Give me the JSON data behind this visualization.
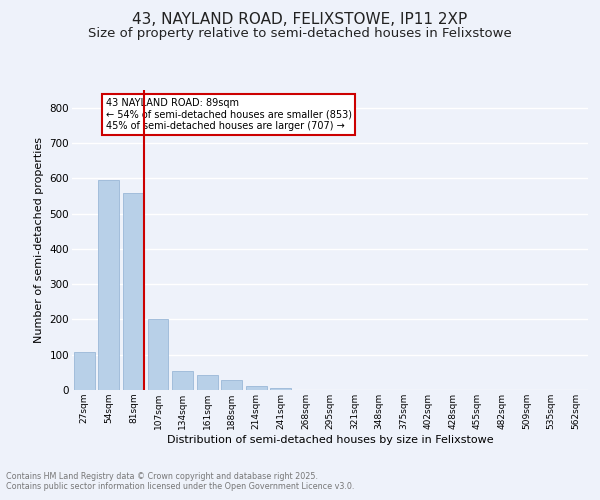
{
  "title1": "43, NAYLAND ROAD, FELIXSTOWE, IP11 2XP",
  "title2": "Size of property relative to semi-detached houses in Felixstowe",
  "xlabel": "Distribution of semi-detached houses by size in Felixstowe",
  "ylabel": "Number of semi-detached properties",
  "footnote1": "Contains HM Land Registry data © Crown copyright and database right 2025.",
  "footnote2": "Contains public sector information licensed under the Open Government Licence v3.0.",
  "annotation_title": "43 NAYLAND ROAD: 89sqm",
  "annotation_line2": "← 54% of semi-detached houses are smaller (853)",
  "annotation_line3": "45% of semi-detached houses are larger (707) →",
  "bar_labels": [
    "27sqm",
    "54sqm",
    "81sqm",
    "107sqm",
    "134sqm",
    "161sqm",
    "188sqm",
    "214sqm",
    "241sqm",
    "268sqm",
    "295sqm",
    "321sqm",
    "348sqm",
    "375sqm",
    "402sqm",
    "428sqm",
    "455sqm",
    "482sqm",
    "509sqm",
    "535sqm",
    "562sqm"
  ],
  "bar_values": [
    107,
    595,
    558,
    201,
    55,
    43,
    27,
    10,
    5,
    0,
    0,
    0,
    0,
    0,
    0,
    0,
    0,
    0,
    0,
    0,
    0
  ],
  "bar_color": "#b8d0e8",
  "bar_edge_color": "#9ab8d8",
  "vline_color": "#cc0000",
  "ylim": [
    0,
    850
  ],
  "yticks": [
    0,
    100,
    200,
    300,
    400,
    500,
    600,
    700,
    800
  ],
  "bg_color": "#eef2fa",
  "grid_color": "#ffffff",
  "title_fontsize": 11,
  "subtitle_fontsize": 9.5,
  "annotation_box_color": "#ffffff",
  "annotation_box_edge": "#cc0000",
  "footnote_color": "#777777"
}
